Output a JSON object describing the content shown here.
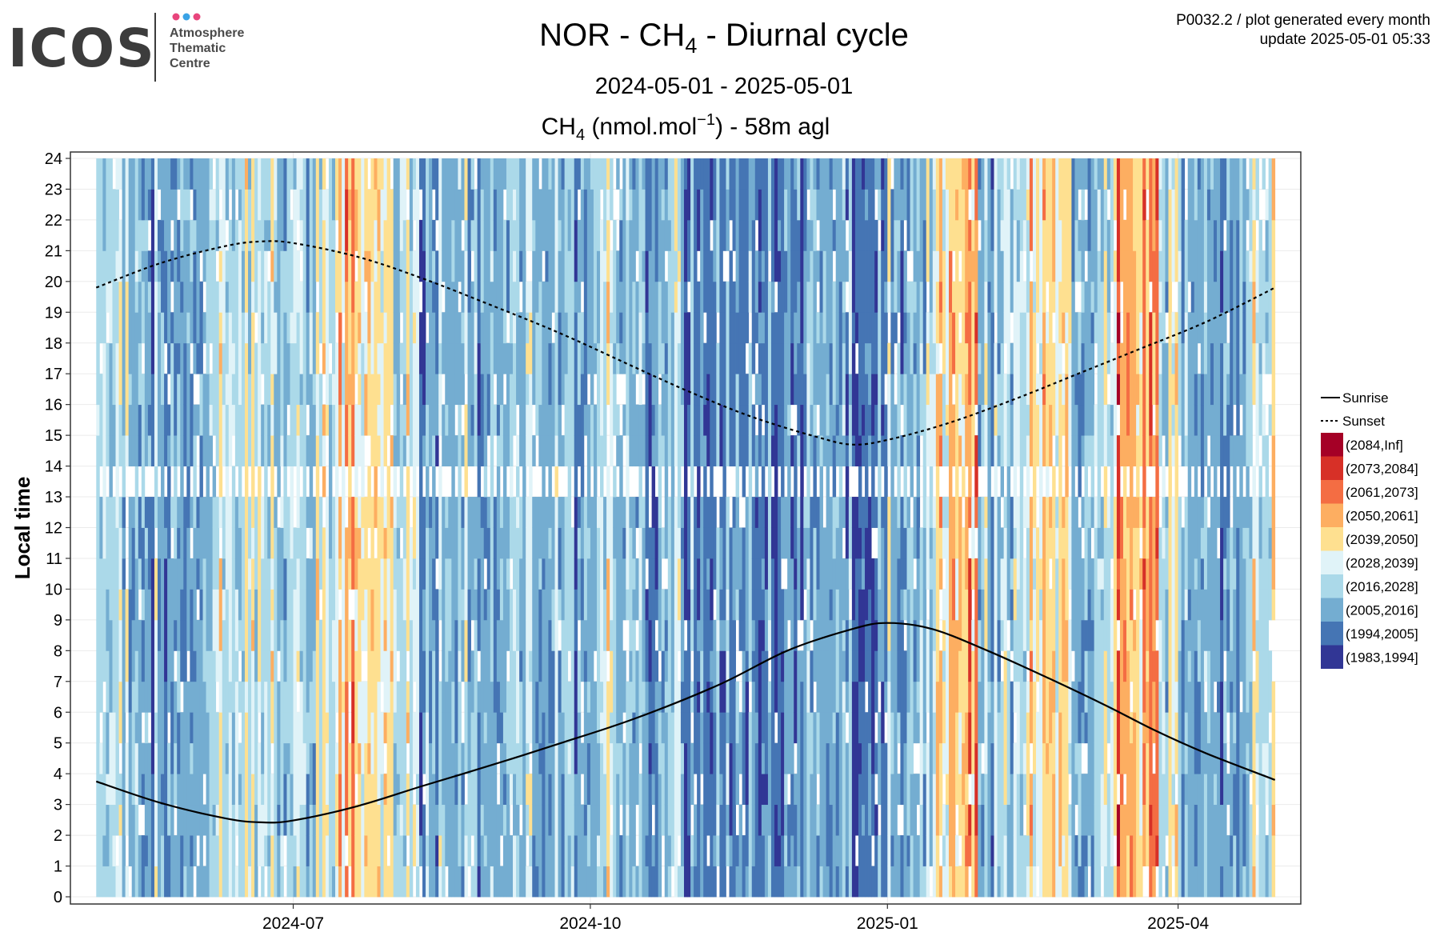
{
  "header": {
    "logo_text": "ICOS",
    "logo_sub": [
      "Atmosphere",
      "Thematic",
      "Centre"
    ],
    "logo_dot_colors": [
      "#e8457c",
      "#3aa3e6",
      "#f2a23a"
    ],
    "title_prefix": "NOR - CH",
    "title_sub": "4",
    "title_suffix": " - Diurnal cycle",
    "date_range": "2024-05-01 - 2025-05-01",
    "meta_line1": "P0032.2 / plot generated every month",
    "meta_line2": "update  2025-05-01 05:33"
  },
  "chart_data": {
    "type": "heatmap",
    "subtitle": {
      "prefix": "CH",
      "sub": "4",
      "middle": " (nmol.mol",
      "sup": "−1",
      "suffix": ") - 58m agl"
    },
    "ylabel": "Local time",
    "y_ticks": [
      "0",
      "1",
      "2",
      "3",
      "4",
      "5",
      "6",
      "7",
      "8",
      "9",
      "10",
      "11",
      "12",
      "13",
      "14",
      "15",
      "16",
      "17",
      "18",
      "19",
      "20",
      "21",
      "22",
      "23",
      "24"
    ],
    "ylim": [
      0,
      24
    ],
    "x_ticks": [
      {
        "label": "2024-07",
        "date": "2024-07-01"
      },
      {
        "label": "2024-10",
        "date": "2024-10-01"
      },
      {
        "label": "2025-01",
        "date": "2025-01-01"
      },
      {
        "label": "2025-04",
        "date": "2025-04-01"
      }
    ],
    "xlim": [
      "2024-04-23",
      "2025-05-09"
    ],
    "date_start": "2024-05-01",
    "date_end": "2025-05-01",
    "grid": true,
    "legend_position": "right",
    "lines": [
      {
        "name": "Sunrise",
        "style": "solid",
        "points": [
          [
            "2024-05-01",
            3.75
          ],
          [
            "2024-05-21",
            3.05
          ],
          [
            "2024-06-10",
            2.55
          ],
          [
            "2024-06-21",
            2.42
          ],
          [
            "2024-07-01",
            2.48
          ],
          [
            "2024-07-21",
            2.95
          ],
          [
            "2024-08-10",
            3.6
          ],
          [
            "2024-09-01",
            4.3
          ],
          [
            "2024-09-22",
            5.0
          ],
          [
            "2024-10-15",
            5.8
          ],
          [
            "2024-11-10",
            6.9
          ],
          [
            "2024-12-01",
            8.0
          ],
          [
            "2024-12-21",
            8.7
          ],
          [
            "2025-01-01",
            8.9
          ],
          [
            "2025-01-15",
            8.7
          ],
          [
            "2025-02-01",
            8.0
          ],
          [
            "2025-02-20",
            7.1
          ],
          [
            "2025-03-10",
            6.2
          ],
          [
            "2025-03-25",
            5.4
          ],
          [
            "2025-04-10",
            4.65
          ],
          [
            "2025-05-01",
            3.8
          ]
        ]
      },
      {
        "name": "Sunset",
        "style": "dashed",
        "points": [
          [
            "2024-05-01",
            19.8
          ],
          [
            "2024-05-21",
            20.6
          ],
          [
            "2024-06-10",
            21.15
          ],
          [
            "2024-06-21",
            21.3
          ],
          [
            "2024-07-01",
            21.25
          ],
          [
            "2024-07-21",
            20.8
          ],
          [
            "2024-08-10",
            20.1
          ],
          [
            "2024-09-01",
            19.2
          ],
          [
            "2024-09-22",
            18.3
          ],
          [
            "2024-10-15",
            17.2
          ],
          [
            "2024-11-01",
            16.4
          ],
          [
            "2024-11-20",
            15.6
          ],
          [
            "2024-12-10",
            14.95
          ],
          [
            "2024-12-21",
            14.7
          ],
          [
            "2025-01-01",
            14.85
          ],
          [
            "2025-01-20",
            15.4
          ],
          [
            "2025-02-10",
            16.2
          ],
          [
            "2025-03-01",
            17.0
          ],
          [
            "2025-03-20",
            17.8
          ],
          [
            "2025-04-10",
            18.7
          ],
          [
            "2025-05-01",
            19.8
          ]
        ]
      }
    ],
    "legend_lines": [
      "Sunrise",
      "Sunset"
    ],
    "bins": [
      {
        "label": "(2084,Inf]",
        "color": "#a50026"
      },
      {
        "label": "(2073,2084]",
        "color": "#d73027"
      },
      {
        "label": "(2061,2073]",
        "color": "#f46d43"
      },
      {
        "label": "(2050,2061]",
        "color": "#fdae61"
      },
      {
        "label": "(2039,2050]",
        "color": "#fee090"
      },
      {
        "label": "(2028,2039]",
        "color": "#e0f3f8"
      },
      {
        "label": "(2016,2028]",
        "color": "#abd9e9"
      },
      {
        "label": "(2005,2016]",
        "color": "#74add1"
      },
      {
        "label": "(1994,2005]",
        "color": "#4575b4"
      },
      {
        "label": "(1983,1994]",
        "color": "#313695"
      }
    ],
    "missing_hour": 13,
    "weekly_profile": [
      6,
      7,
      7,
      7,
      7,
      6,
      6,
      6,
      6,
      6,
      5,
      4,
      4,
      6,
      7,
      7,
      7,
      7,
      7,
      7,
      7,
      7,
      6,
      7,
      8,
      7,
      8,
      8,
      8,
      8,
      8,
      7,
      7,
      8,
      8,
      7,
      7,
      5,
      4,
      7,
      6,
      5,
      4,
      7,
      6,
      3,
      4,
      6,
      7,
      7,
      7,
      6,
      5,
      5,
      3
    ]
  }
}
